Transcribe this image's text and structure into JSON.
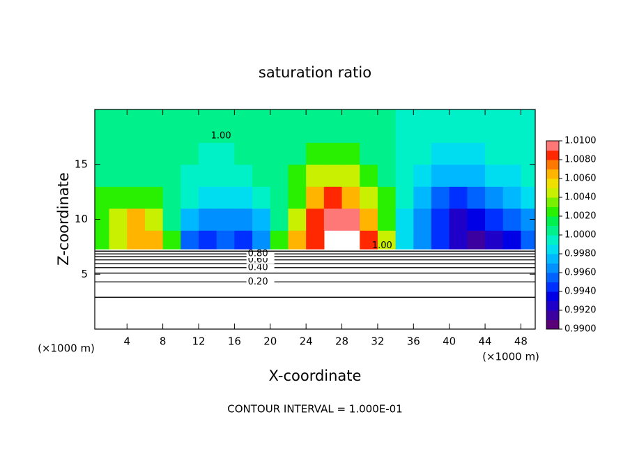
{
  "chart_data": {
    "type": "contour",
    "title": "saturation ratio",
    "x_label": "X-coordinate",
    "y_label": "Z-coordinate",
    "x_unit": "(×1000 m)",
    "footer": "CONTOUR INTERVAL = 1.000E-01",
    "xlim": [
      0.4,
      49.6
    ],
    "ylim": [
      0,
      20
    ],
    "xticks": [
      4,
      8,
      12,
      16,
      20,
      24,
      28,
      32,
      36,
      40,
      44,
      48
    ],
    "yticks": [
      5,
      10,
      15
    ],
    "x_edges": [
      0,
      2,
      4,
      6,
      8,
      10,
      12,
      14,
      16,
      18,
      20,
      22,
      24,
      26,
      28,
      30,
      32,
      34,
      36,
      38,
      40,
      42,
      44,
      46,
      48,
      50
    ],
    "y_edges": [
      7.3,
      9,
      11,
      13,
      15,
      17,
      20
    ],
    "z": [
      [
        1.003,
        1.005,
        1.007,
        1.006,
        1.002,
        0.995,
        0.994,
        0.995,
        0.994,
        0.996,
        1.002,
        1.007,
        1.009,
        null,
        null,
        1.009,
        1.004,
        0.998,
        0.996,
        0.994,
        0.992,
        0.991,
        0.992,
        0.993,
        0.995
      ],
      [
        1.002,
        1.004,
        1.006,
        1.005,
        1.001,
        0.997,
        0.996,
        0.996,
        0.996,
        0.997,
        1.001,
        1.005,
        1.008,
        1.01,
        1.01,
        1.007,
        1.003,
        0.998,
        0.996,
        0.994,
        0.992,
        0.993,
        0.994,
        0.995,
        0.996
      ],
      [
        1.002,
        1.002,
        1.003,
        1.002,
        1.0,
        0.999,
        0.998,
        0.998,
        0.998,
        0.999,
        1.001,
        1.003,
        1.006,
        1.008,
        1.007,
        1.005,
        1.002,
        0.999,
        0.997,
        0.995,
        0.994,
        0.995,
        0.996,
        0.997,
        0.998
      ],
      [
        1.001,
        1.001,
        1.001,
        1.001,
        1.0,
        0.999,
        0.999,
        0.999,
        0.999,
        1.0,
        1.001,
        1.002,
        1.004,
        1.005,
        1.004,
        1.003,
        1.001,
        0.999,
        0.998,
        0.997,
        0.997,
        0.997,
        0.998,
        0.998,
        0.999
      ],
      [
        1.0,
        1.0,
        1.001,
        1.001,
        1.0,
        1.0,
        0.999,
        0.999,
        1.0,
        1.0,
        1.001,
        1.001,
        1.002,
        1.002,
        1.002,
        1.001,
        1.001,
        0.999,
        0.999,
        0.998,
        0.998,
        0.998,
        0.999,
        0.999,
        0.999
      ],
      [
        1.0,
        1.0,
        1.0,
        1.0,
        1.0,
        1.0,
        1.0,
        1.0,
        1.0,
        1.0,
        1.001,
        1.001,
        1.001,
        1.001,
        1.001,
        1.001,
        1.0,
        0.999,
        0.999,
        0.999,
        0.999,
        0.999,
        0.999,
        0.999,
        0.999
      ]
    ],
    "colorbar": {
      "lim": [
        0.99,
        1.01
      ],
      "ticks": [
        {
          "value": 0.99,
          "label": "0.9900"
        },
        {
          "value": 0.992,
          "label": "0.9920"
        },
        {
          "value": 0.994,
          "label": "0.9940"
        },
        {
          "value": 0.996,
          "label": "0.9960"
        },
        {
          "value": 0.998,
          "label": "0.9980"
        },
        {
          "value": 1.0,
          "label": "1.0000"
        },
        {
          "value": 1.002,
          "label": "1.0020"
        },
        {
          "value": 1.004,
          "label": "1.0040"
        },
        {
          "value": 1.006,
          "label": "1.0060"
        },
        {
          "value": 1.008,
          "label": "1.0080"
        },
        {
          "value": 1.01,
          "label": "1.0100"
        }
      ],
      "colors": [
        "#5a0078",
        "#3c00a0",
        "#1e00c8",
        "#0000e6",
        "#0030ff",
        "#0062ff",
        "#0090ff",
        "#00b8ff",
        "#00dcf0",
        "#00f0c8",
        "#00f08c",
        "#00f050",
        "#28f000",
        "#78f000",
        "#c8f000",
        "#f0e000",
        "#ffb400",
        "#ff7800",
        "#ff2800",
        "#ff7878"
      ]
    },
    "contours": [
      {
        "level": 0.1,
        "y": 2.9
      },
      {
        "level": 0.2,
        "y": 4.3,
        "label": "0.20"
      },
      {
        "level": 0.3,
        "y": 5.1
      },
      {
        "level": 0.4,
        "y": 5.6,
        "label": "0.40"
      },
      {
        "level": 0.5,
        "y": 5.95
      },
      {
        "level": 0.6,
        "y": 6.3,
        "label": "0.60"
      },
      {
        "level": 0.7,
        "y": 6.6
      },
      {
        "level": 0.8,
        "y": 6.85,
        "label": "0.80"
      },
      {
        "level": 0.9,
        "y": 7.1
      }
    ],
    "contour_label_x": 17.5,
    "contour_labels": [
      {
        "label": "1.00",
        "x": 14.5,
        "y": 17.6
      },
      {
        "label": "1.00",
        "x": 32.5,
        "y": 7.6
      }
    ]
  }
}
